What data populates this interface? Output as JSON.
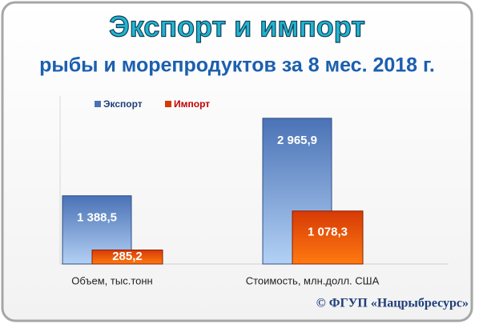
{
  "chart_data": {
    "type": "bar",
    "title": "Экспорт и импорт",
    "subtitle": "рыбы и морепродуктов за 8 мес. 2018 г.",
    "categories": [
      "Объем, тыс.тонн",
      "Стоимость, млн.долл. США"
    ],
    "series": [
      {
        "name": "Экспорт",
        "color": "#4a72b5",
        "values": [
          1388.5,
          2965.9
        ],
        "value_labels": [
          "1 388,5",
          "2 965,9"
        ]
      },
      {
        "name": "Импорт",
        "color": "#d63a06",
        "values": [
          285.2,
          1078.3
        ],
        "value_labels": [
          "285,2",
          "1 078,3"
        ]
      }
    ],
    "ylim": [
      0,
      3500
    ],
    "legend": "top-left",
    "annotations": [
      "© ФГУП «Нацрыбресурс»"
    ]
  }
}
